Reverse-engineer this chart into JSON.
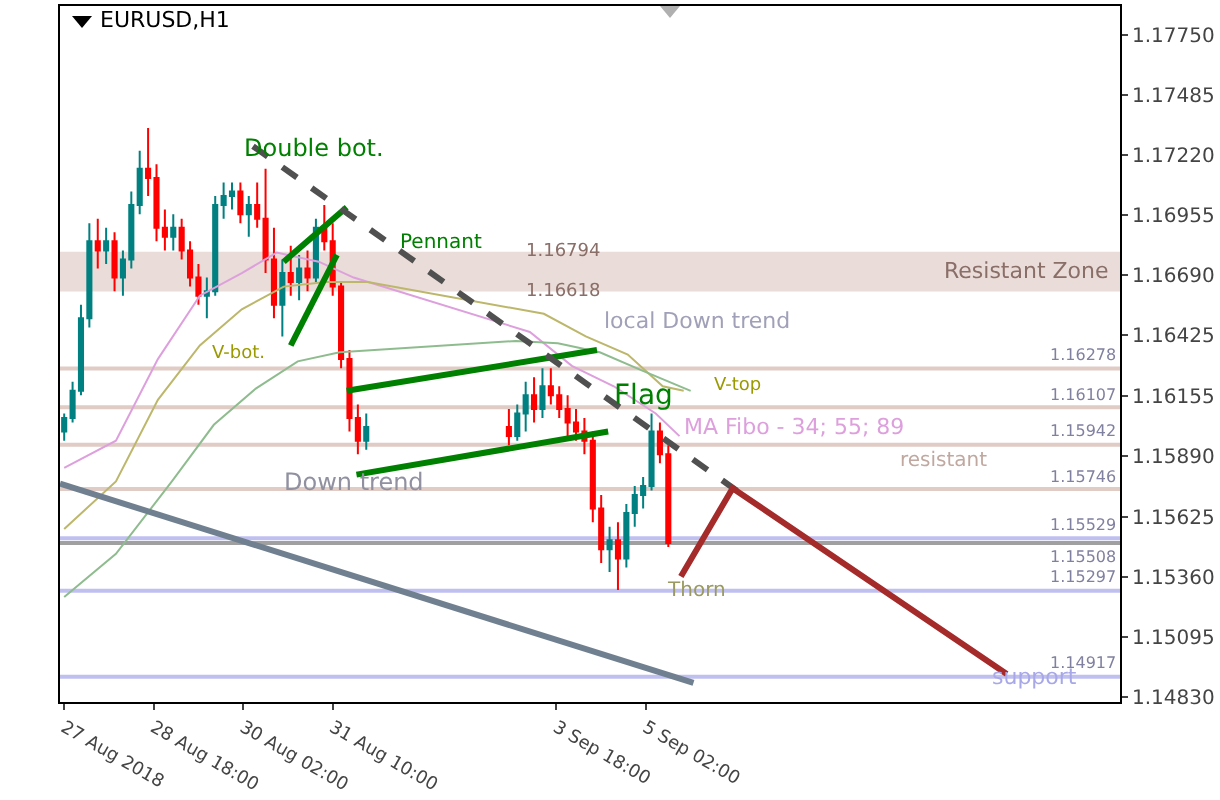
{
  "chart_data": {
    "type": "candlestick",
    "title": "EURUSD,H1",
    "x": [
      "2018-08-27T10:00",
      "2018-08-27T13:00",
      "2018-08-27T16:00",
      "2018-08-27T19:00",
      "2018-08-27T22:00",
      "2018-08-28T01:00",
      "2018-08-28T04:00",
      "2018-08-28T07:00",
      "2018-08-28T10:00",
      "2018-08-28T13:00",
      "2018-08-28T16:00",
      "2018-08-28T19:00",
      "2018-08-28T22:00",
      "2018-08-29T01:00",
      "2018-08-29T04:00",
      "2018-08-29T07:00",
      "2018-08-29T10:00",
      "2018-08-29T13:00",
      "2018-08-29T16:00",
      "2018-08-29T19:00",
      "2018-08-29T22:00",
      "2018-08-30T01:00",
      "2018-08-30T04:00",
      "2018-08-30T07:00",
      "2018-08-30T10:00",
      "2018-08-30T13:00",
      "2018-08-30T16:00",
      "2018-08-30T19:00",
      "2018-08-30T22:00",
      "2018-08-31T01:00",
      "2018-08-31T04:00",
      "2018-08-31T07:00",
      "2018-08-31T10:00",
      "2018-08-31T13:00",
      "2018-08-31T16:00",
      "2018-08-31T19:00",
      "2018-08-31T22:00",
      "2018-09-03T01:00",
      "2018-09-03T04:00",
      "2018-09-03T07:00",
      "2018-09-03T10:00",
      "2018-09-03T13:00",
      "2018-09-03T16:00",
      "2018-09-03T19:00",
      "2018-09-03T22:00",
      "2018-09-04T01:00",
      "2018-09-04T04:00",
      "2018-09-04T07:00",
      "2018-09-04T10:00",
      "2018-09-04T13:00",
      "2018-09-04T16:00",
      "2018-09-04T19:00",
      "2018-09-04T22:00",
      "2018-09-05T01:00",
      "2018-09-05T04:00",
      "2018-09-05T07:00",
      "2018-09-05T10:00"
    ],
    "ohlc": [
      [
        1.16,
        1.1608,
        1.1596,
        1.1606
      ],
      [
        1.1606,
        1.1622,
        1.1604,
        1.1618
      ],
      [
        1.1618,
        1.1656,
        1.1616,
        1.165
      ],
      [
        1.165,
        1.1692,
        1.1646,
        1.1684
      ],
      [
        1.1684,
        1.1694,
        1.1672,
        1.168
      ],
      [
        1.168,
        1.169,
        1.1674,
        1.1684
      ],
      [
        1.1684,
        1.1688,
        1.1662,
        1.1668
      ],
      [
        1.1668,
        1.168,
        1.166,
        1.1676
      ],
      [
        1.1676,
        1.1706,
        1.1672,
        1.17
      ],
      [
        1.17,
        1.1724,
        1.1696,
        1.1716
      ],
      [
        1.1716,
        1.1734,
        1.1704,
        1.1712
      ],
      [
        1.1712,
        1.1718,
        1.1684,
        1.169
      ],
      [
        1.169,
        1.1698,
        1.168,
        1.1686
      ],
      [
        1.1686,
        1.1696,
        1.168,
        1.169
      ],
      [
        1.169,
        1.1694,
        1.1676,
        1.168
      ],
      [
        1.168,
        1.1684,
        1.1664,
        1.1668
      ],
      [
        1.1668,
        1.1674,
        1.1656,
        1.166
      ],
      [
        1.166,
        1.1668,
        1.165,
        1.1662
      ],
      [
        1.1662,
        1.1704,
        1.166,
        1.17
      ],
      [
        1.17,
        1.171,
        1.1694,
        1.1704
      ],
      [
        1.1704,
        1.171,
        1.1698,
        1.1706
      ],
      [
        1.1706,
        1.171,
        1.1692,
        1.1696
      ],
      [
        1.1696,
        1.1704,
        1.1686,
        1.17
      ],
      [
        1.17,
        1.171,
        1.169,
        1.1694
      ],
      [
        1.1694,
        1.1716,
        1.167,
        1.1676
      ],
      [
        1.1676,
        1.169,
        1.165,
        1.1656
      ],
      [
        1.1656,
        1.1676,
        1.1642,
        1.167
      ],
      [
        1.167,
        1.1682,
        1.166,
        1.1666
      ],
      [
        1.1666,
        1.1678,
        1.1658,
        1.1672
      ],
      [
        1.1672,
        1.168,
        1.1662,
        1.1668
      ],
      [
        1.1668,
        1.1694,
        1.1666,
        1.169
      ],
      [
        1.169,
        1.17,
        1.168,
        1.1684
      ],
      [
        1.1684,
        1.1692,
        1.166,
        1.1664
      ],
      [
        1.1664,
        1.1666,
        1.1628,
        1.1632
      ],
      [
        1.1632,
        1.1636,
        1.16,
        1.1606
      ],
      [
        1.1606,
        1.1612,
        1.159,
        1.1596
      ],
      [
        1.1596,
        1.1608,
        1.1592,
        1.1602
      ],
      [
        1.1602,
        1.161,
        1.1594,
        1.1598
      ],
      [
        1.1598,
        1.1612,
        1.1596,
        1.1608
      ],
      [
        1.1608,
        1.1622,
        1.16,
        1.1616
      ],
      [
        1.1616,
        1.1624,
        1.1604,
        1.161
      ],
      [
        1.161,
        1.1628,
        1.1606,
        1.162
      ],
      [
        1.162,
        1.1628,
        1.1612,
        1.1616
      ],
      [
        1.1616,
        1.162,
        1.1606,
        1.161
      ],
      [
        1.161,
        1.1616,
        1.1598,
        1.1604
      ],
      [
        1.1604,
        1.161,
        1.1596,
        1.16
      ],
      [
        1.16,
        1.1606,
        1.159,
        1.1596
      ],
      [
        1.1596,
        1.16,
        1.156,
        1.1566
      ],
      [
        1.1566,
        1.1572,
        1.1542,
        1.1548
      ],
      [
        1.1548,
        1.1558,
        1.1538,
        1.1552
      ],
      [
        1.1552,
        1.156,
        1.153,
        1.1544
      ],
      [
        1.1544,
        1.1568,
        1.154,
        1.1564
      ],
      [
        1.1564,
        1.1576,
        1.1558,
        1.1572
      ],
      [
        1.1572,
        1.158,
        1.1566,
        1.1576
      ],
      [
        1.1576,
        1.1608,
        1.1574,
        1.16
      ],
      [
        1.16,
        1.1604,
        1.1586,
        1.159
      ],
      [
        1.159,
        1.1594,
        1.1549,
        1.15508
      ]
    ],
    "colors": [
      "#008080",
      "#008080",
      "#008080",
      "#008080",
      "#ff0000",
      "#008080",
      "#ff0000",
      "#008080",
      "#008080",
      "#008080",
      "#ff0000",
      "#ff0000",
      "#ff0000",
      "#008080",
      "#ff0000",
      "#ff0000",
      "#ff0000",
      "#008080",
      "#008080",
      "#008080",
      "#008080",
      "#ff0000",
      "#008080",
      "#ff0000",
      "#ff0000",
      "#ff0000",
      "#008080",
      "#ff0000",
      "#008080",
      "#ff0000",
      "#008080",
      "#ff0000",
      "#ff0000",
      "#ff0000",
      "#ff0000",
      "#ff0000",
      "#008080",
      "#ff0000",
      "#008080",
      "#008080",
      "#ff0000",
      "#008080",
      "#ff0000",
      "#ff0000",
      "#ff0000",
      "#ff0000",
      "#ff0000",
      "#ff0000",
      "#ff0000",
      "#008080",
      "#ff0000",
      "#008080",
      "#008080",
      "#008080",
      "#008080",
      "#ff0000",
      "#ff0000"
    ],
    "series": [
      {
        "type": "line",
        "color": "#dda0dd",
        "x": [
          "2018-08-27T10:00",
          "2018-08-28T04:30",
          "2018-08-28T19:30",
          "2018-08-29T10:30",
          "2018-08-30T01:30",
          "2018-08-30T14:00",
          "2018-08-31T05:00",
          "2018-08-31T17:30",
          "2018-09-03T08:30",
          "2018-09-03T23:30",
          "2018-09-04T14:30",
          "2018-09-05T05:30",
          "2018-09-05T14:00"
        ],
        "values": [
          1.1584,
          1.1596,
          1.1632,
          1.166,
          1.167,
          1.1679,
          1.1675,
          1.1668,
          1.1644,
          1.1629,
          1.162,
          1.1608,
          1.1598
        ]
      },
      {
        "type": "line",
        "color": "#bdb76b",
        "x": [
          "2018-08-27T10:00",
          "2018-08-28T04:30",
          "2018-08-28T19:30",
          "2018-08-29T10:30",
          "2018-08-30T01:30",
          "2018-08-30T16:30",
          "2018-08-31T07:30",
          "2018-08-31T22:30",
          "2018-09-03T13:30",
          "2018-09-04T04:30",
          "2018-09-04T19:30",
          "2018-09-05T08:00",
          "2018-09-05T15:30"
        ],
        "values": [
          1.1557,
          1.1578,
          1.1614,
          1.1638,
          1.1654,
          1.1664,
          1.1666,
          1.1666,
          1.1652,
          1.1642,
          1.1634,
          1.162,
          1.1618
        ]
      },
      {
        "type": "line",
        "color": "#8fbc8f",
        "x": [
          "2018-08-27T10:00",
          "2018-08-28T04:30",
          "2018-08-29T00:30",
          "2018-08-29T15:30",
          "2018-08-30T06:30",
          "2018-08-30T21:30",
          "2018-08-31T12:30",
          "2018-09-03T03:30",
          "2018-09-03T18:30",
          "2018-09-04T09:30",
          "2018-09-05T00:30",
          "2018-09-05T18:00"
        ],
        "values": [
          1.1527,
          1.1546,
          1.1578,
          1.1603,
          1.1619,
          1.1631,
          1.1635,
          1.164,
          1.1639,
          1.1635,
          1.1627,
          1.1618
        ]
      },
      {
        "type": "line",
        "color": "#708090",
        "x": [
          "2018-08-27T08:30",
          "2018-09-05T19:00"
        ],
        "values": [
          1.1577,
          1.1489
        ]
      },
      {
        "type": "line",
        "color": "#008000",
        "x": [
          "2018-08-30T16:30",
          "2018-08-31T15:00"
        ],
        "values": [
          1.1675,
          1.1699
        ]
      },
      {
        "type": "line",
        "color": "#008000",
        "x": [
          "2018-08-30T19:00",
          "2018-08-31T11:30"
        ],
        "values": [
          1.1638,
          1.1678
        ]
      },
      {
        "type": "line",
        "color": "#008000",
        "x": [
          "2018-08-31T15:00",
          "2018-09-04T08:30"
        ],
        "values": [
          1.1618,
          1.1636
        ]
      },
      {
        "type": "line",
        "color": "#008000",
        "x": [
          "2018-08-31T18:30",
          "2018-09-04T12:30"
        ],
        "values": [
          1.1581,
          1.16
        ]
      },
      {
        "type": "line",
        "color": "#505050",
        "line_style": "dashed",
        "x": [
          "2018-08-30T05:30",
          "2018-09-06T11:30"
        ],
        "values": [
          1.1726,
          1.1573
        ]
      },
      {
        "type": "line",
        "color": "#a52a2a",
        "x": [
          "2018-09-05T14:30",
          "2018-09-06T09:00",
          "2018-09-10T11:00"
        ],
        "values": [
          1.1536,
          1.1575,
          1.1493
        ]
      }
    ],
    "xlim": [
      "2018-08-27T08:30",
      "2018-09-12T03:30"
    ],
    "xticks": [
      {
        "value": "2018-08-27T10:00",
        "label": "27 Aug 2018"
      },
      {
        "value": "2018-08-28T18:00",
        "label": "28 Aug 18:00"
      },
      {
        "value": "2018-08-30T02:00",
        "label": "30 Aug 02:00"
      },
      {
        "value": "2018-08-31T10:00",
        "label": "31 Aug 10:00"
      },
      {
        "value": "2018-09-03T18:00",
        "label": "3 Sep 18:00"
      },
      {
        "value": "2018-09-05T02:00",
        "label": "5 Sep 02:00"
      }
    ],
    "ylim": [
      1.14806,
      1.17879
    ],
    "yticks": [
      {
        "value": 1.1775,
        "label": "1.17750"
      },
      1.17485,
      {
        "value": 1.1722,
        "label": "1.17220"
      },
      1.16955,
      {
        "value": 1.1669,
        "label": "1.16690"
      },
      1.16425,
      1.16155,
      {
        "value": 1.1589,
        "label": "1.15890"
      },
      1.15625,
      {
        "value": 1.1536,
        "label": "1.15360"
      },
      1.15095,
      {
        "value": 1.1483,
        "label": "1.14830"
      }
    ],
    "bands": [
      {
        "axis": "y",
        "from": 1.16618,
        "to": 1.16794,
        "label": "Resistant Zone",
        "color": "#eadcd8"
      }
    ],
    "ref_lines": [
      {
        "axis": "y",
        "value": 1.16278,
        "label": "1.16278",
        "color": "#e0cbc5"
      },
      {
        "axis": "y",
        "value": 1.16107,
        "label": "1.16107",
        "color": "#e0cbc5"
      },
      {
        "axis": "y",
        "value": 1.15942,
        "label": "1.15942",
        "color": "#e0cbc5"
      },
      {
        "axis": "y",
        "value": 1.15746,
        "label": "1.15746",
        "color": "#e0cbc5"
      },
      {
        "axis": "y",
        "value": 1.15529,
        "label": "1.15529",
        "color": "#c0c0f0"
      },
      {
        "axis": "y",
        "value": 1.15508,
        "label": "1.15508",
        "color": "#a0a0a0"
      },
      {
        "axis": "y",
        "value": 1.15297,
        "label": "1.15297",
        "color": "#c0c0f0"
      },
      {
        "axis": "y",
        "value": 1.14917,
        "label": "1.14917",
        "color": "#c0c0f0"
      }
    ],
    "annotations": [
      "Double bot.",
      "V-bot.",
      "Pennant",
      "local Down trend",
      "Flag",
      "V-top",
      "MA Fibo - 34; 55; 89",
      "Down trend",
      "Thorn",
      {
        "text": "1.16794",
        "x": "2018-09-03T20:00",
        "y": 1.16794
      },
      {
        "text": "1.16618",
        "x": "2018-09-03T20:00",
        "y": 1.16618
      },
      "resistant",
      "support"
    ],
    "grid": false
  }
}
